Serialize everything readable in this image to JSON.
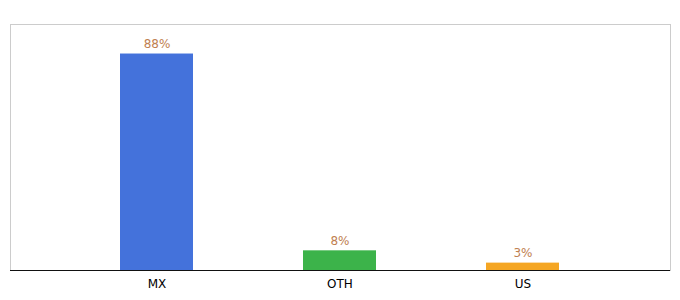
{
  "chart_data": {
    "type": "bar",
    "categories": [
      "MX",
      "OTH",
      "US"
    ],
    "values": [
      88,
      8,
      3
    ],
    "value_labels": [
      "88%",
      "8%",
      "3%"
    ],
    "colors": [
      "#4472db",
      "#3cb34a",
      "#f5a623"
    ],
    "ylim": [
      0,
      100
    ],
    "grid": false,
    "data_labels": true,
    "tick_labels": "x"
  }
}
